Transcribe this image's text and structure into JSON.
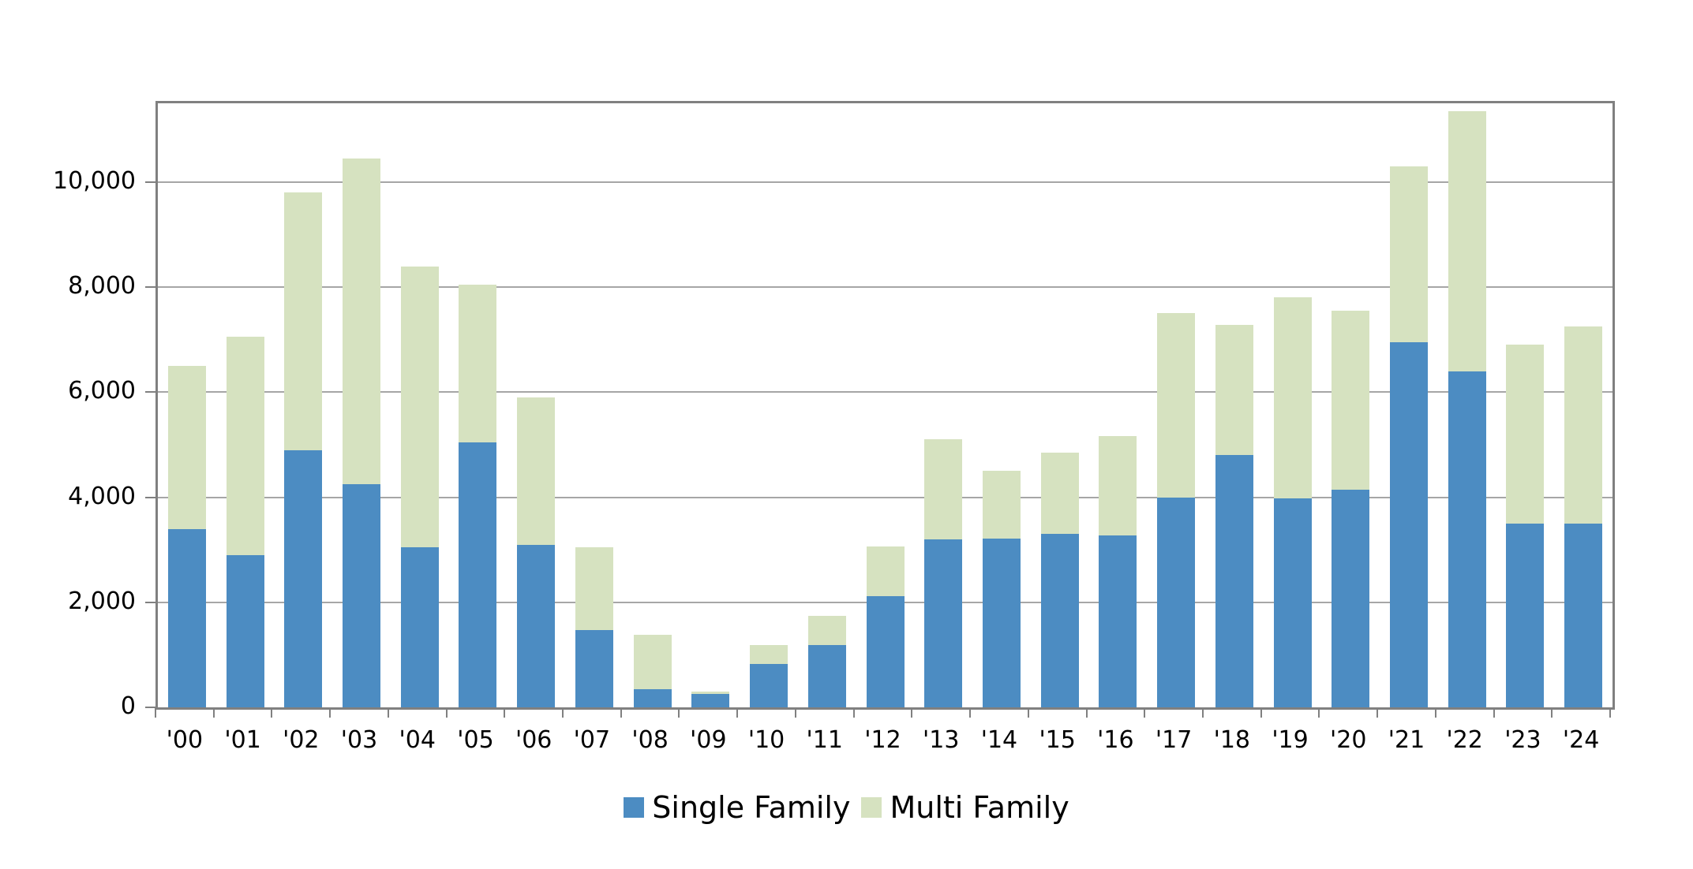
{
  "chart_data": {
    "type": "bar",
    "stacked": true,
    "title": "",
    "xlabel": "",
    "ylabel": "",
    "categories": [
      "'00",
      "'01",
      "'02",
      "'03",
      "'04",
      "'05",
      "'06",
      "'07",
      "'08",
      "'09",
      "'10",
      "'11",
      "'12",
      "'13",
      "'14",
      "'15",
      "'16",
      "'17",
      "'18",
      "'19",
      "'20",
      "'21",
      "'22",
      "'23",
      "'24"
    ],
    "series": [
      {
        "name": "Single Family",
        "color": "#4C8CC2",
        "values": [
          3400,
          2900,
          4900,
          4250,
          3050,
          5050,
          3100,
          1470,
          350,
          260,
          820,
          1180,
          2110,
          3200,
          3220,
          3310,
          3280,
          4000,
          4800,
          3980,
          4150,
          6950,
          6400,
          3500,
          3500
        ]
      },
      {
        "name": "Multi Family",
        "color": "#D6E2C0",
        "values": [
          3100,
          4150,
          4900,
          6200,
          5350,
          3000,
          2800,
          1580,
          1030,
          40,
          360,
          560,
          960,
          1900,
          1280,
          1540,
          1880,
          3500,
          2480,
          3820,
          3400,
          3350,
          4950,
          3400,
          3750
        ]
      }
    ],
    "ylim": [
      0,
      11500
    ],
    "yticks": [
      0,
      2000,
      4000,
      6000,
      8000,
      10000
    ],
    "ytick_labels": [
      "0",
      "2,000",
      "4,000",
      "6,000",
      "8,000",
      "10,000"
    ],
    "grid": true,
    "gridline_color": "#a6a6a6",
    "axis_color": "#808080",
    "legend_position": "bottom"
  }
}
